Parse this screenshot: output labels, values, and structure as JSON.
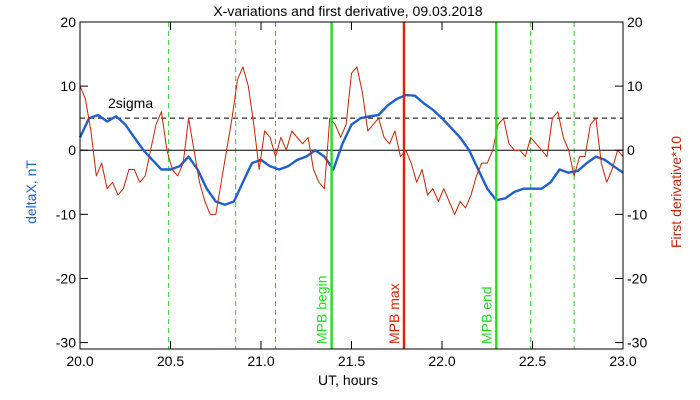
{
  "chart_data": {
    "type": "line",
    "title": "X-variations and first derivative, 09.03.2018",
    "xlabel": "UT, hours",
    "ylabel_left": "deltaX, nT",
    "ylabel_right": "First derivative*10",
    "xlim": [
      20.0,
      23.0
    ],
    "ylim": [
      -31,
      20
    ],
    "xticks": [
      "20.0",
      "20.5",
      "21.0",
      "21.5",
      "22.0",
      "22.5",
      "23.0"
    ],
    "xtick_values": [
      20.0,
      20.5,
      21.0,
      21.5,
      22.0,
      22.5,
      23.0
    ],
    "yticks": [
      "20",
      "10",
      "0",
      "-10",
      "-20",
      "-30"
    ],
    "ytick_values": [
      20,
      10,
      0,
      -10,
      -20,
      -30
    ],
    "sigma": {
      "label": "2sigma",
      "value": 5
    },
    "zero_line": 0,
    "dashed_verticals": [
      20.49,
      20.86,
      21.08,
      22.49,
      22.73
    ],
    "markers": [
      {
        "label": "MPB begin",
        "x": 21.39,
        "color": "#22dd22"
      },
      {
        "label": "MPB max",
        "x": 21.79,
        "color": "#dd2200"
      },
      {
        "label": "MPB end",
        "x": 22.3,
        "color": "#22dd22"
      }
    ],
    "series": [
      {
        "name": "deltaX",
        "color": "#1f5fcf",
        "x": [
          20.0,
          20.05,
          20.1,
          20.15,
          20.2,
          20.25,
          20.3,
          20.35,
          20.4,
          20.45,
          20.5,
          20.55,
          20.6,
          20.65,
          20.7,
          20.75,
          20.8,
          20.85,
          20.9,
          20.95,
          21.0,
          21.05,
          21.1,
          21.15,
          21.2,
          21.25,
          21.3,
          21.35,
          21.4,
          21.45,
          21.5,
          21.55,
          21.6,
          21.65,
          21.7,
          21.75,
          21.8,
          21.85,
          21.9,
          21.95,
          22.0,
          22.05,
          22.1,
          22.15,
          22.2,
          22.25,
          22.3,
          22.35,
          22.4,
          22.45,
          22.5,
          22.55,
          22.6,
          22.65,
          22.7,
          22.75,
          22.8,
          22.85,
          22.9,
          22.95,
          23.0
        ],
        "values": [
          2,
          5,
          5.5,
          4.5,
          5.3,
          4,
          2,
          0,
          -1.5,
          -3,
          -3,
          -2.5,
          -1,
          -3,
          -6,
          -8,
          -8.5,
          -8,
          -5,
          -2,
          -1.5,
          -2.5,
          -3,
          -2.5,
          -1.5,
          -1,
          0,
          -1,
          -3,
          1,
          4,
          5,
          5.3,
          5.5,
          7,
          8,
          8.6,
          8.5,
          7.3,
          6.3,
          5,
          3.5,
          2,
          0,
          -3,
          -6,
          -7.8,
          -7.5,
          -6.5,
          -6,
          -6,
          -6,
          -5,
          -3,
          -3.5,
          -3.2,
          -2,
          -1,
          -1.5,
          -2.5,
          -3.5
        ]
      },
      {
        "name": "first derivative",
        "color": "#cc2200",
        "x": [
          20.0,
          20.03,
          20.06,
          20.09,
          20.12,
          20.15,
          20.18,
          20.21,
          20.24,
          20.27,
          20.3,
          20.33,
          20.36,
          20.39,
          20.42,
          20.45,
          20.48,
          20.51,
          20.54,
          20.57,
          20.6,
          20.63,
          20.66,
          20.69,
          20.72,
          20.75,
          20.78,
          20.81,
          20.84,
          20.87,
          20.9,
          20.93,
          20.96,
          20.99,
          21.02,
          21.05,
          21.08,
          21.11,
          21.14,
          21.17,
          21.2,
          21.23,
          21.26,
          21.29,
          21.32,
          21.35,
          21.38,
          21.41,
          21.44,
          21.47,
          21.5,
          21.53,
          21.56,
          21.59,
          21.62,
          21.65,
          21.68,
          21.71,
          21.74,
          21.77,
          21.8,
          21.83,
          21.86,
          21.89,
          21.92,
          21.95,
          21.98,
          22.01,
          22.04,
          22.07,
          22.1,
          22.13,
          22.16,
          22.19,
          22.22,
          22.25,
          22.28,
          22.31,
          22.34,
          22.37,
          22.4,
          22.43,
          22.46,
          22.49,
          22.52,
          22.55,
          22.58,
          22.61,
          22.64,
          22.67,
          22.7,
          22.73,
          22.76,
          22.79,
          22.82,
          22.85,
          22.88,
          22.91,
          22.94,
          22.97,
          23.0
        ],
        "values": [
          10,
          8,
          3,
          -4,
          -2,
          -6,
          -5,
          -7,
          -6,
          -3,
          -3,
          -5,
          -4,
          0,
          4,
          6,
          0,
          -3,
          -4,
          -2,
          5,
          0,
          -5,
          -8,
          -10,
          -10,
          -5,
          0,
          5,
          11,
          13,
          10,
          4,
          -3,
          3,
          2,
          -1,
          2,
          0,
          3,
          2,
          1,
          2,
          -3,
          -5,
          -6,
          5,
          4,
          2,
          4,
          12,
          13,
          9,
          3,
          4,
          5,
          2,
          1,
          3,
          -1,
          0,
          -2,
          -5,
          -3,
          -7,
          -6,
          -8,
          -6,
          -8,
          -10,
          -8,
          -9,
          -7,
          -4,
          -2,
          -2,
          0,
          4,
          5,
          1,
          0,
          0,
          -1,
          2,
          1,
          0,
          -1,
          5,
          6,
          2,
          0,
          -4,
          -1,
          -1,
          4,
          5,
          -2,
          -5,
          -3,
          0,
          -1
        ]
      }
    ]
  }
}
